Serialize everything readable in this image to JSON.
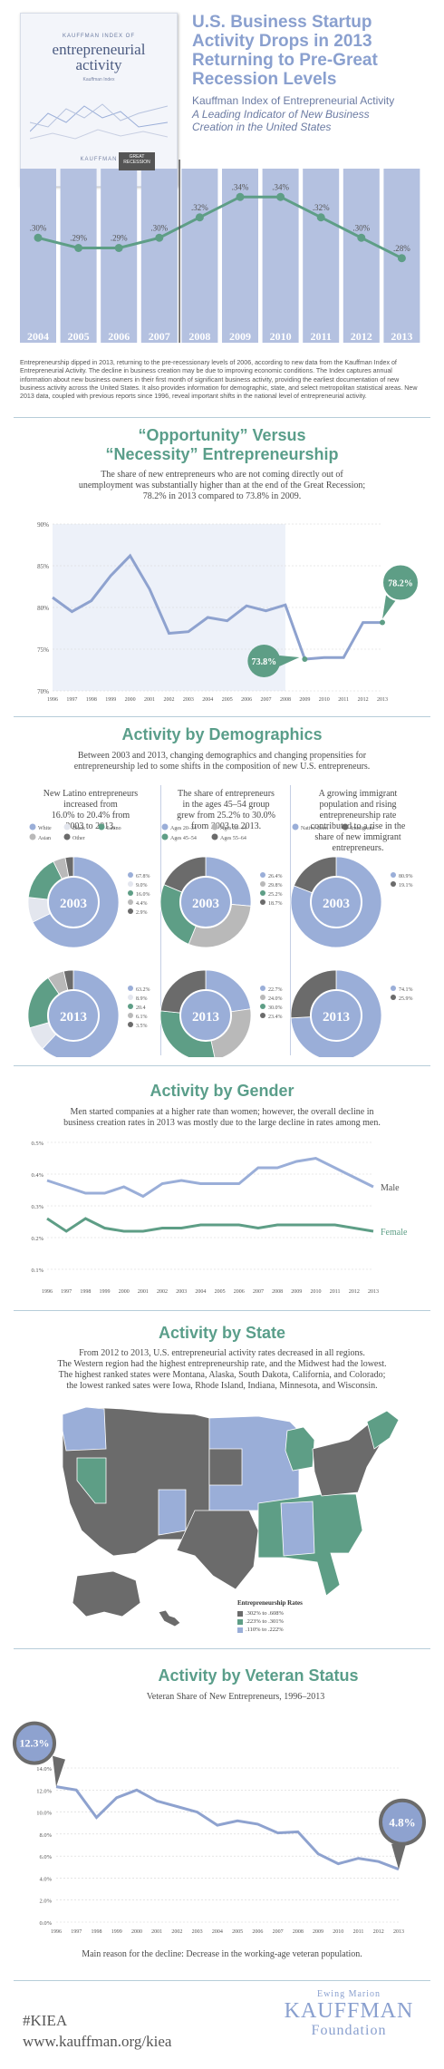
{
  "colors": {
    "teal": "#5e9e86",
    "blue": "#9aaed8",
    "dark": "#6b6b6b",
    "title_blue": "#8aa0cf",
    "text": "#4a4a4a"
  },
  "cover": {
    "top_line": "KAUFFMAN INDEX OF",
    "title": "entrepreneurial activity",
    "sub": "Kauffman Index",
    "logo": "KAUFFMAN"
  },
  "header": {
    "title_lines": [
      "U.S. Business Startup",
      "Activity Drops in 2013",
      "Returning to Pre-Great",
      "Recession Levels"
    ],
    "subtitle": "Kauffman Index of Entrepreneurial Activity",
    "tagline_lines": [
      "A Leading Indicator of New Business",
      "Creation in the United States"
    ]
  },
  "intro": {
    "flag": "GREAT RECESSION",
    "text": "Entrepreneurship dipped in 2013, returning to the pre-recessionary levels of 2006, according to new data from the Kauffman Index of Entrepreneurial Activity. The decline in business creation may be due to improving economic conditions. The Index captures annual information about new business owners in their first month of significant business activity, providing the earliest documentation of new business activity across the United States. It also provides information for demographic, state, and select metropolitan statistical areas. New 2013 data, coupled with previous reports since 1996, reveal important shifts in the national level of entrepreneurial activity."
  },
  "opportunity": {
    "title_lines": [
      "“Opportunity” Versus",
      "“Necessity” Entrepreneurship"
    ],
    "text_lines": [
      "The share of new entrepreneurs who are not coming directly out of",
      "unemployment was substantially higher than at the end of the Great Recession;",
      "78.2% in 2013 compared to 73.8% in 2009."
    ],
    "callout_low": "73.8%",
    "callout_high": "78.2%"
  },
  "demographics": {
    "title": "Activity by Demographics",
    "intro_lines": [
      "Between 2003 and 2013, changing demographics and changing propensities for",
      "entrepreneurship led to some shifts in the composition of new U.S. entrepreneurs."
    ],
    "columns": [
      {
        "text_lines": [
          "New Latino entrepreneurs",
          "increased from",
          "16.0% to 20.4% from",
          "2003 to 2013."
        ],
        "legend": [
          "White",
          "Black",
          "Latino",
          "Asian",
          "Other"
        ],
        "legend_colors": [
          "#9aaed8",
          "#e3e6ee",
          "#5e9e86",
          "#b9b9b9",
          "#6b6b6b"
        ]
      },
      {
        "text_lines": [
          "The share of entrepreneurs",
          "in the ages 45–54 group",
          "grew from 25.2% to 30.0%",
          "from 2003 to 2013."
        ],
        "legend": [
          "Ages 20–34",
          "Ages 35–44",
          "Ages 45–54",
          "Ages 55–64"
        ],
        "legend_colors": [
          "#9aaed8",
          "#b9b9b9",
          "#5e9e86",
          "#6b6b6b"
        ]
      },
      {
        "text_lines": [
          "A growing immigrant",
          "population and rising",
          "entrepreneurship rate",
          "contributed to a rise in the",
          "share of new immigrant",
          "entrepreneurs."
        ],
        "legend": [
          "Native-Born",
          "Immigrant"
        ],
        "legend_colors": [
          "#9aaed8",
          "#6b6b6b"
        ]
      }
    ]
  },
  "gender": {
    "title": "Activity by Gender",
    "text_lines": [
      "Men started companies at a higher rate than women; however, the overall decline in",
      "business creation rates in 2013 was mostly due to the large decline in rates among men."
    ]
  },
  "state": {
    "title": "Activity by State",
    "text_lines": [
      "From 2012 to 2013, U.S. entrepreneurial activity rates decreased in all regions.",
      "The Western region had the highest entrepreneurship rate, and the Midwest had the lowest.",
      "The highest ranked states were Montana, Alaska, South Dakota, California, and Colorado;",
      "the lowest ranked sates were Iowa, Rhode Island, Indiana, Minnesota, and Wisconsin."
    ],
    "legend_title": "Entrepreneurship Rates",
    "legend": [
      ".302% to .608%",
      ".223% to .301%",
      ".110% to .222%"
    ],
    "legend_colors": [
      "#6b6b6b",
      "#5e9e86",
      "#9aaed8"
    ]
  },
  "veteran": {
    "title": "Activity by Veteran Status",
    "subtitle": "Veteran Share of New Entrepreneurs, 1996–2013",
    "callout_high": "12.3%",
    "callout_low": "4.8%",
    "note": "Main reason for the decline: Decrease in the working-age veteran population."
  },
  "footer": {
    "hashtag": "#KIEA",
    "url": "www.kauffman.org/kiea",
    "logo_top": "Ewing Marion",
    "logo_main": "KAUFFMAN",
    "logo_bottom": "Foundation"
  },
  "chart_data": [
    {
      "type": "bar",
      "title": "",
      "categories": [
        "2004",
        "2005",
        "2006",
        "2007",
        "2008",
        "2009",
        "2010",
        "2011",
        "2012",
        "2013"
      ],
      "values": [
        0.3,
        0.29,
        0.29,
        0.3,
        0.32,
        0.34,
        0.34,
        0.32,
        0.3,
        0.28
      ],
      "labels": [
        ".30%",
        ".29%",
        ".29%",
        ".30%",
        ".32%",
        ".34%",
        ".34%",
        ".32%",
        ".30%",
        ".28%"
      ]
    },
    {
      "type": "line",
      "title": "",
      "x": [
        1996,
        1997,
        1998,
        1999,
        2000,
        2001,
        2002,
        2003,
        2004,
        2005,
        2006,
        2007,
        2008,
        2009,
        2010,
        2011,
        2012,
        2013
      ],
      "values": [
        81.2,
        79.5,
        80.8,
        83.8,
        86.2,
        82.2,
        76.9,
        77.1,
        78.8,
        78.4,
        80.2,
        79.6,
        80.3,
        73.8,
        74.0,
        74.0,
        78.2,
        78.2
      ],
      "ylim": [
        70,
        90
      ],
      "yticks": [
        "90%",
        "85%",
        "80%",
        "75%",
        "70%"
      ],
      "shaded_region": [
        1996,
        2008
      ],
      "highlights": [
        "73.8%",
        "78.2%"
      ]
    },
    {
      "type": "pie",
      "title": "2003",
      "group": "race",
      "slices": [
        {
          "name": "White",
          "value": 67.8,
          "label": "67.8%"
        },
        {
          "name": "Black",
          "value": 9.0,
          "label": "9.0%"
        },
        {
          "name": "Latino",
          "value": 16.0,
          "label": "16.0%"
        },
        {
          "name": "Asian",
          "value": 4.4,
          "label": "4.4%"
        },
        {
          "name": "Other",
          "value": 2.9,
          "label": "2.9%"
        }
      ]
    },
    {
      "type": "pie",
      "title": "2013",
      "group": "race",
      "slices": [
        {
          "name": "White",
          "value": 63.2,
          "label": "63.2%"
        },
        {
          "name": "Black",
          "value": 8.9,
          "label": "8.9%"
        },
        {
          "name": "Latino",
          "value": 20.4,
          "label": "20.4"
        },
        {
          "name": "Asian",
          "value": 6.1,
          "label": "6.1%"
        },
        {
          "name": "Other",
          "value": 3.5,
          "label": "3.5%"
        }
      ]
    },
    {
      "type": "pie",
      "title": "2003",
      "group": "age",
      "slices": [
        {
          "name": "Ages 20–34",
          "value": 26.4,
          "label": "26.4%"
        },
        {
          "name": "Ages 35–44",
          "value": 29.8,
          "label": "29.8%"
        },
        {
          "name": "Ages 45–54",
          "value": 25.2,
          "label": "25.2%"
        },
        {
          "name": "Ages 55–64",
          "value": 18.7,
          "label": "18.7%"
        }
      ]
    },
    {
      "type": "pie",
      "title": "2013",
      "group": "age",
      "slices": [
        {
          "name": "Ages 20–34",
          "value": 22.7,
          "label": "22.7%"
        },
        {
          "name": "Ages 35–44",
          "value": 24.0,
          "label": "24.0%"
        },
        {
          "name": "Ages 45–54",
          "value": 30.0,
          "label": "30.0%"
        },
        {
          "name": "Ages 55–64",
          "value": 23.4,
          "label": "23.4%"
        }
      ]
    },
    {
      "type": "pie",
      "title": "2003",
      "group": "nativity",
      "slices": [
        {
          "name": "Native-Born",
          "value": 80.9,
          "label": "80.9%"
        },
        {
          "name": "Immigrant",
          "value": 19.1,
          "label": "19.1%"
        }
      ]
    },
    {
      "type": "pie",
      "title": "2013",
      "group": "nativity",
      "slices": [
        {
          "name": "Native-Born",
          "value": 74.1,
          "label": "74.1%"
        },
        {
          "name": "Immigrant",
          "value": 25.9,
          "label": "25.9%"
        }
      ]
    },
    {
      "type": "line",
      "title": "",
      "x": [
        1996,
        1997,
        1998,
        1999,
        2000,
        2001,
        2002,
        2003,
        2004,
        2005,
        2006,
        2007,
        2008,
        2009,
        2010,
        2011,
        2012,
        2013
      ],
      "series": [
        {
          "name": "Male",
          "values": [
            0.38,
            0.36,
            0.34,
            0.34,
            0.36,
            0.33,
            0.37,
            0.38,
            0.37,
            0.37,
            0.37,
            0.42,
            0.42,
            0.44,
            0.45,
            0.42,
            0.39,
            0.36
          ]
        },
        {
          "name": "Female",
          "values": [
            0.26,
            0.22,
            0.26,
            0.23,
            0.22,
            0.22,
            0.23,
            0.23,
            0.24,
            0.24,
            0.24,
            0.23,
            0.24,
            0.24,
            0.24,
            0.24,
            0.23,
            0.22
          ]
        }
      ],
      "ylim": [
        0.1,
        0.5
      ],
      "yticks": [
        "0.5%",
        "0.4%",
        "0.3%",
        "0.2%",
        "0.1%"
      ]
    },
    {
      "type": "line",
      "title": "",
      "x": [
        1996,
        1997,
        1998,
        1999,
        2000,
        2001,
        2002,
        2003,
        2004,
        2005,
        2006,
        2007,
        2008,
        2009,
        2010,
        2011,
        2012,
        2013
      ],
      "values": [
        12.3,
        12.0,
        9.5,
        11.3,
        12.0,
        11.0,
        10.5,
        10.0,
        8.8,
        9.2,
        8.9,
        8.1,
        8.2,
        6.2,
        5.3,
        5.8,
        5.5,
        4.8
      ],
      "ylim": [
        0,
        14
      ],
      "yticks": [
        "14.0%",
        "12.0%",
        "10.0%",
        "8.0%",
        "6.0%",
        "4.0%",
        "2.0%",
        "0.0%"
      ],
      "highlights": [
        "12.3%",
        "4.8%"
      ]
    }
  ]
}
